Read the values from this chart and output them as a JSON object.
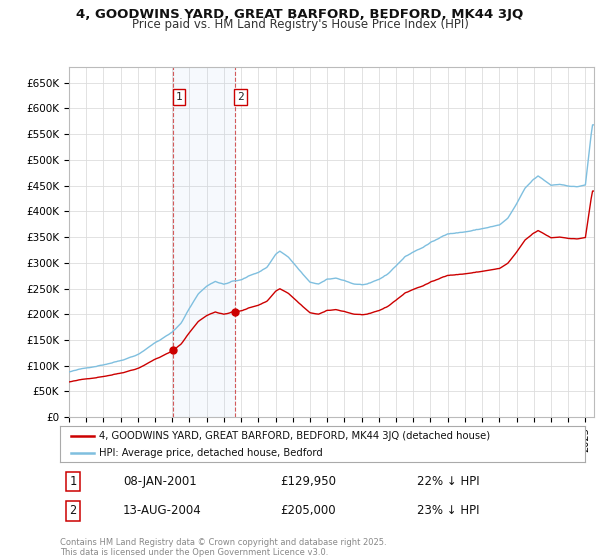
{
  "title_line1": "4, GOODWINS YARD, GREAT BARFORD, BEDFORD, MK44 3JQ",
  "title_line2": "Price paid vs. HM Land Registry's House Price Index (HPI)",
  "background_color": "#ffffff",
  "grid_color": "#dddddd",
  "hpi_color": "#7fbfdf",
  "sold_color": "#cc0000",
  "annotation_line_color": "#cc3333",
  "ylim": [
    0,
    680000
  ],
  "yticks": [
    0,
    50000,
    100000,
    150000,
    200000,
    250000,
    300000,
    350000,
    400000,
    450000,
    500000,
    550000,
    600000,
    650000
  ],
  "ytick_labels": [
    "£0",
    "£50K",
    "£100K",
    "£150K",
    "£200K",
    "£250K",
    "£300K",
    "£350K",
    "£400K",
    "£450K",
    "£500K",
    "£550K",
    "£600K",
    "£650K"
  ],
  "sale1_date": 2001.04,
  "sale1_price": 129950,
  "sale1_label": "1",
  "sale1_annotation": "08-JAN-2001",
  "sale1_price_str": "£129,950",
  "sale1_hpi_str": "22% ↓ HPI",
  "sale2_date": 2004.62,
  "sale2_price": 205000,
  "sale2_label": "2",
  "sale2_annotation": "13-AUG-2004",
  "sale2_price_str": "£205,000",
  "sale2_hpi_str": "23% ↓ HPI",
  "legend_label1": "4, GOODWINS YARD, GREAT BARFORD, BEDFORD, MK44 3JQ (detached house)",
  "legend_label2": "HPI: Average price, detached house, Bedford",
  "footer": "Contains HM Land Registry data © Crown copyright and database right 2025.\nThis data is licensed under the Open Government Licence v3.0.",
  "xmin": 1995,
  "xmax": 2025.5
}
